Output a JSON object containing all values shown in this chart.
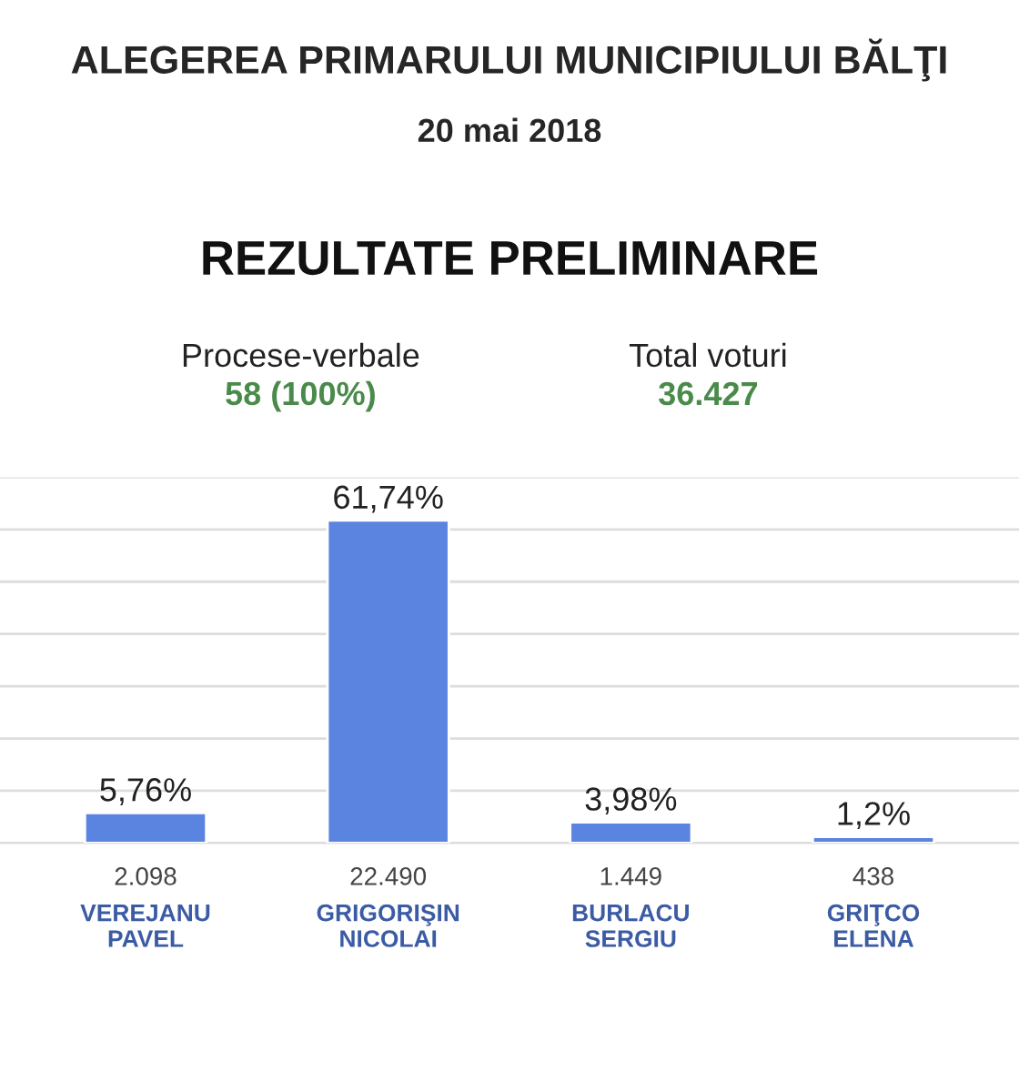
{
  "chart_data": {
    "type": "bar",
    "title": "ALEGEREA PRIMARULUI MUNICIPIULUI BĂLŢI",
    "subtitle": "20 mai 2018",
    "categories": [
      "VEREJANU\nPAVEL",
      "GRIGORIŞIN\nNICOLAI",
      "BURLACU\nSERGIU",
      "GRIŢCO\nELENA"
    ],
    "values": [
      5.76,
      61.74,
      3.98,
      1.2
    ],
    "value_labels": [
      "5,76%",
      "61,74%",
      "3,98%",
      "1,2%"
    ],
    "color": "#5b84e0",
    "annotations": [
      "REZULTATE PRELIMINARE",
      "Procese-verbale",
      "58 (100%)",
      "Total voturi",
      "36.427",
      "2.098",
      "22.490",
      "1.449",
      "438"
    ],
    "ylim": [
      0,
      70
    ],
    "yticks": [
      {
        "value": 0,
        "label": null
      },
      {
        "value": 10,
        "label": null
      },
      {
        "value": 20,
        "label": null
      },
      {
        "value": 30,
        "label": null
      },
      {
        "value": 40,
        "label": null
      },
      {
        "value": 50,
        "label": null
      },
      {
        "value": 60,
        "label": null
      },
      {
        "value": 70,
        "label": null
      }
    ],
    "grid": "y",
    "tick_labels": "x"
  }
}
